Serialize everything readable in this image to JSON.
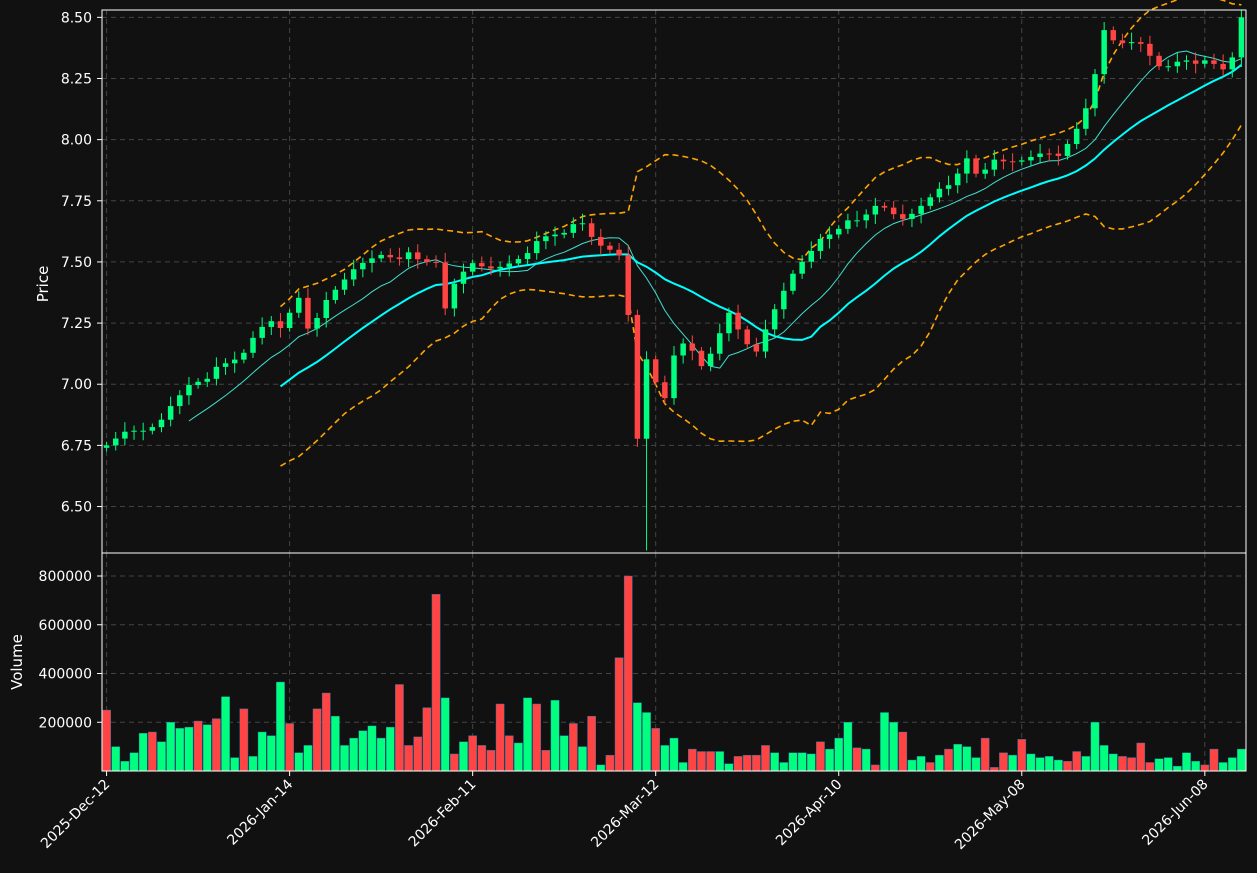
{
  "colors": {
    "background": "#111111",
    "up": "#00ff7f",
    "down": "#ff4444",
    "sma_fast": "#40e0d0",
    "sma_slow": "#00ffff",
    "bollinger": "#ffa500",
    "grid": "#444444",
    "axis": "#ffffff"
  },
  "chart_data": [
    {
      "type": "candlestick",
      "ylabel": "Price",
      "xlabel": "",
      "ylim": [
        6.31,
        8.53
      ],
      "yticks": [
        "6.50",
        "6.75",
        "7.00",
        "7.25",
        "7.50",
        "7.75",
        "8.00",
        "8.25",
        "8.50"
      ],
      "grid": true,
      "overlays": [
        "moving average (thin, turquoise)",
        "moving average (thick, cyan)",
        "upper band (dashed, orange)",
        "lower band (dashed, orange)"
      ],
      "anchors": [
        {
          "i": 0,
          "c": 6.75
        },
        {
          "i": 3,
          "c": 6.81
        },
        {
          "i": 6,
          "c": 6.81
        },
        {
          "i": 8,
          "c": 6.84
        },
        {
          "i": 10,
          "c": 6.92
        },
        {
          "i": 13,
          "c": 7.01
        },
        {
          "i": 15,
          "c": 7.01
        },
        {
          "i": 17,
          "c": 7.08
        },
        {
          "i": 19,
          "c": 7.09
        },
        {
          "i": 21,
          "c": 7.13
        },
        {
          "i": 23,
          "c": 7.22
        },
        {
          "i": 25,
          "c": 7.26
        },
        {
          "i": 27,
          "c": 7.22
        },
        {
          "i": 29,
          "c": 7.38
        },
        {
          "i": 31,
          "c": 7.2
        },
        {
          "i": 33,
          "c": 7.33
        },
        {
          "i": 36,
          "c": 7.42
        },
        {
          "i": 38,
          "c": 7.48
        },
        {
          "i": 40,
          "c": 7.51
        },
        {
          "i": 42,
          "c": 7.53
        },
        {
          "i": 43,
          "c": 7.52
        },
        {
          "i": 45,
          "c": 7.51
        },
        {
          "i": 46,
          "c": 7.54
        },
        {
          "i": 48,
          "c": 7.5
        },
        {
          "i": 50,
          "c": 7.5
        },
        {
          "i": 51,
          "c": 7.49
        },
        {
          "i": 52,
          "c": 7.2
        },
        {
          "i": 53,
          "c": 7.41
        },
        {
          "i": 54,
          "c": 7.45
        },
        {
          "i": 56,
          "c": 7.5
        },
        {
          "i": 58,
          "c": 7.47
        },
        {
          "i": 60,
          "c": 7.48
        },
        {
          "i": 62,
          "c": 7.5
        },
        {
          "i": 64,
          "c": 7.53
        },
        {
          "i": 66,
          "c": 7.6
        },
        {
          "i": 68,
          "c": 7.61
        },
        {
          "i": 70,
          "c": 7.62
        },
        {
          "i": 72,
          "c": 7.68
        },
        {
          "i": 74,
          "c": 7.6
        },
        {
          "i": 76,
          "c": 7.55
        },
        {
          "i": 78,
          "c": 7.55
        },
        {
          "i": 80,
          "c": 7.2
        },
        {
          "i": 81,
          "c": 6.74
        },
        {
          "i": 82,
          "c": 7.08
        },
        {
          "i": 83,
          "c": 7.15
        },
        {
          "i": 84,
          "c": 6.95
        },
        {
          "i": 85,
          "c": 6.93
        },
        {
          "i": 87,
          "c": 7.18
        },
        {
          "i": 89,
          "c": 7.15
        },
        {
          "i": 91,
          "c": 7.06
        },
        {
          "i": 93,
          "c": 7.18
        },
        {
          "i": 95,
          "c": 7.3
        },
        {
          "i": 97,
          "c": 7.18
        },
        {
          "i": 99,
          "c": 7.13
        },
        {
          "i": 101,
          "c": 7.26
        },
        {
          "i": 103,
          "c": 7.37
        },
        {
          "i": 105,
          "c": 7.47
        },
        {
          "i": 107,
          "c": 7.53
        },
        {
          "i": 109,
          "c": 7.6
        },
        {
          "i": 111,
          "c": 7.62
        },
        {
          "i": 113,
          "c": 7.67
        },
        {
          "i": 115,
          "c": 7.67
        },
        {
          "i": 117,
          "c": 7.73
        },
        {
          "i": 119,
          "c": 7.72
        },
        {
          "i": 121,
          "c": 7.67
        },
        {
          "i": 123,
          "c": 7.7
        },
        {
          "i": 125,
          "c": 7.75
        },
        {
          "i": 127,
          "c": 7.8
        },
        {
          "i": 129,
          "c": 7.82
        },
        {
          "i": 131,
          "c": 7.93
        },
        {
          "i": 133,
          "c": 7.84
        },
        {
          "i": 135,
          "c": 7.92
        },
        {
          "i": 137,
          "c": 7.91
        },
        {
          "i": 139,
          "c": 7.91
        },
        {
          "i": 141,
          "c": 7.93
        },
        {
          "i": 143,
          "c": 7.95
        },
        {
          "i": 145,
          "c": 7.93
        },
        {
          "i": 147,
          "c": 8.0
        },
        {
          "i": 149,
          "c": 8.1
        },
        {
          "i": 151,
          "c": 8.3
        },
        {
          "i": 152,
          "c": 8.45
        },
        {
          "i": 154,
          "c": 8.39
        },
        {
          "i": 156,
          "c": 8.4
        },
        {
          "i": 158,
          "c": 8.39
        },
        {
          "i": 160,
          "c": 8.3
        },
        {
          "i": 162,
          "c": 8.3
        },
        {
          "i": 164,
          "c": 8.33
        },
        {
          "i": 166,
          "c": 8.31
        },
        {
          "i": 168,
          "c": 8.33
        },
        {
          "i": 170,
          "c": 8.28
        },
        {
          "i": 172,
          "c": 8.35
        },
        {
          "i": 173,
          "c": 8.5
        }
      ],
      "moving_average_fast_start": 9,
      "moving_average_slow_start": 19
    },
    {
      "type": "bar",
      "ylabel": "Volume",
      "yticks": [
        "200000",
        "400000",
        "600000",
        "800000"
      ],
      "ylim": [
        0,
        800000
      ],
      "xticks": [
        "2025-Dec-12",
        "2026-Jan-14",
        "2026-Feb-11",
        "2026-Mar-12",
        "2026-Apr-10",
        "2026-May-08",
        "2026-Jun-08"
      ],
      "xtick_index": [
        0,
        20,
        40,
        60,
        80,
        100,
        120
      ],
      "volumes": [
        250000,
        100000,
        40000,
        75000,
        155000,
        160000,
        120000,
        200000,
        175000,
        180000,
        205000,
        190000,
        215000,
        305000,
        55000,
        255000,
        60000,
        160000,
        145000,
        365000,
        195000,
        75000,
        105000,
        255000,
        320000,
        225000,
        105000,
        135000,
        165000,
        185000,
        135000,
        180000,
        355000,
        105000,
        140000,
        260000,
        725000,
        300000,
        70000,
        120000,
        145000,
        105000,
        85000,
        275000,
        145000,
        115000,
        300000,
        275000,
        85000,
        290000,
        145000,
        195000,
        100000,
        225000,
        25000,
        65000,
        465000,
        800000,
        280000,
        240000,
        175000,
        105000,
        135000,
        35000,
        90000,
        80000,
        80000,
        80000,
        30000,
        60000,
        65000,
        65000,
        105000,
        75000,
        35000,
        75000,
        75000,
        70000,
        120000,
        90000,
        135000,
        200000,
        95000,
        90000,
        25000,
        240000,
        200000,
        160000,
        45000,
        60000,
        35000,
        65000,
        90000,
        110000,
        100000,
        55000,
        135000,
        15000,
        75000,
        65000,
        130000,
        70000,
        55000,
        60000,
        45000,
        40000,
        80000,
        60000,
        200000,
        105000,
        70000,
        60000,
        55000,
        115000,
        35000,
        50000,
        55000,
        20000,
        75000,
        40000,
        25000,
        90000,
        35000,
        55000,
        90000
      ],
      "volume_up": [
        false,
        true,
        true,
        true,
        true,
        false,
        true,
        true,
        true,
        true,
        false,
        true,
        false,
        true,
        true,
        false,
        true,
        true,
        true,
        true,
        false,
        true,
        true,
        false,
        false,
        true,
        true,
        true,
        true,
        true,
        true,
        true,
        false,
        false,
        false,
        false,
        false,
        true,
        false,
        true,
        false,
        false,
        false,
        false,
        false,
        true,
        true,
        false,
        false,
        true,
        true,
        false,
        true,
        false,
        true,
        false,
        false,
        false,
        true,
        true,
        false,
        true,
        true,
        true,
        false,
        false,
        false,
        true,
        true,
        false,
        false,
        false,
        false,
        true,
        true,
        true,
        true,
        true,
        false,
        true,
        true,
        true,
        false,
        true,
        false,
        true,
        true,
        false,
        true,
        true,
        false,
        true,
        false,
        true,
        true,
        true,
        false,
        false,
        false,
        true,
        false,
        true,
        true,
        true,
        true,
        false,
        false,
        true,
        true,
        true,
        true,
        false,
        false,
        false,
        false,
        true,
        true,
        true,
        true,
        true,
        false,
        false,
        true,
        true,
        true
      ]
    }
  ]
}
